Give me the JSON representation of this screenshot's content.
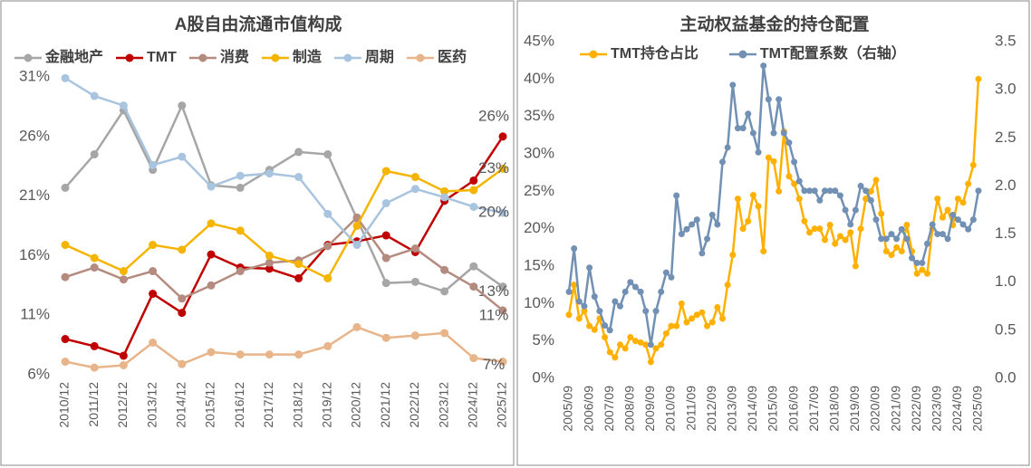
{
  "chart_data": [
    {
      "type": "line",
      "title": "A股自由流通市值构成",
      "categories": [
        "2010/12",
        "2011/12",
        "2012/12",
        "2013/12",
        "2014/12",
        "2015/12",
        "2016/12",
        "2017/12",
        "2018/12",
        "2019/12",
        "2020/12",
        "2021/12",
        "2022/12",
        "2023/12",
        "2024/12",
        "2025/12"
      ],
      "ylim": [
        6,
        31
      ],
      "yticks": [
        {
          "value": 6,
          "label": "6%"
        },
        {
          "value": 11,
          "label": "11%"
        },
        {
          "value": 16,
          "label": "16%"
        },
        {
          "value": 21,
          "label": "21%"
        },
        {
          "value": 26,
          "label": "26%"
        },
        {
          "value": 31,
          "label": "31%"
        }
      ],
      "legend": "top",
      "series": [
        {
          "name": "金融地产",
          "color": "#a6a6a6",
          "values": [
            21.7,
            24.5,
            28.2,
            23.2,
            28.6,
            21.9,
            21.7,
            23.2,
            24.7,
            24.5,
            19.1,
            13.7,
            13.8,
            13.0,
            15.1,
            13.4
          ],
          "value_labels": [
            null,
            null,
            null,
            null,
            null,
            null,
            null,
            null,
            null,
            null,
            null,
            null,
            null,
            null,
            null,
            "13%"
          ]
        },
        {
          "name": "TMT",
          "color": "#c00000",
          "values": [
            9.0,
            8.4,
            7.6,
            12.8,
            11.2,
            16.1,
            15.0,
            14.9,
            14.1,
            16.9,
            17.2,
            17.7,
            16.3,
            20.6,
            22.3,
            26.0
          ],
          "value_labels": [
            null,
            null,
            null,
            null,
            null,
            null,
            null,
            null,
            null,
            null,
            null,
            null,
            null,
            null,
            null,
            "26%"
          ]
        },
        {
          "name": "消费",
          "color": "#b58b80",
          "values": [
            14.2,
            15.0,
            14.0,
            14.7,
            12.4,
            13.5,
            14.7,
            15.4,
            15.6,
            16.8,
            19.2,
            15.8,
            16.6,
            14.8,
            13.4,
            11.4
          ],
          "value_labels": [
            null,
            null,
            null,
            null,
            null,
            null,
            null,
            null,
            null,
            null,
            null,
            null,
            null,
            null,
            null,
            "11%"
          ]
        },
        {
          "name": "制造",
          "color": "#f5b400",
          "values": [
            16.9,
            15.8,
            14.7,
            16.9,
            16.5,
            18.7,
            18.1,
            16.0,
            15.3,
            14.1,
            18.5,
            23.1,
            22.6,
            21.4,
            21.5,
            23.3
          ],
          "value_labels": [
            null,
            null,
            null,
            null,
            null,
            null,
            null,
            null,
            null,
            null,
            null,
            null,
            null,
            null,
            null,
            "23%"
          ]
        },
        {
          "name": "周期",
          "color": "#a9c4de",
          "values": [
            30.9,
            29.4,
            28.6,
            23.6,
            24.3,
            21.8,
            22.7,
            22.9,
            22.6,
            19.5,
            16.9,
            20.4,
            21.6,
            20.9,
            20.1,
            19.6
          ],
          "value_labels": [
            null,
            null,
            null,
            null,
            null,
            null,
            null,
            null,
            null,
            null,
            null,
            null,
            null,
            null,
            null,
            "20%"
          ]
        },
        {
          "name": "医药",
          "color": "#e8b48a",
          "values": [
            7.1,
            6.6,
            6.8,
            8.7,
            6.9,
            7.9,
            7.7,
            7.7,
            7.7,
            8.4,
            10.0,
            9.1,
            9.3,
            9.5,
            7.4,
            7.1
          ],
          "value_labels": [
            null,
            null,
            null,
            null,
            null,
            null,
            null,
            null,
            null,
            null,
            null,
            null,
            null,
            null,
            null,
            "7%"
          ]
        }
      ]
    },
    {
      "type": "line",
      "title": "主动权益基金的持仓配置",
      "categories": [
        "2005/09",
        null,
        null,
        null,
        "2006/09",
        null,
        null,
        null,
        "2007/09",
        null,
        null,
        null,
        "2008/09",
        null,
        null,
        null,
        "2009/09",
        null,
        null,
        null,
        "2010/09",
        null,
        null,
        null,
        "2011/09",
        null,
        null,
        null,
        "2012/09",
        null,
        null,
        null,
        "2013/09",
        null,
        null,
        null,
        "2014/09",
        null,
        null,
        null,
        "2015/09",
        null,
        null,
        null,
        "2016/09",
        null,
        null,
        null,
        "2017/09",
        null,
        null,
        null,
        "2018/09",
        null,
        null,
        null,
        "2019/09",
        null,
        null,
        null,
        "2020/09",
        null,
        null,
        null,
        "2021/09",
        null,
        null,
        null,
        "2022/09",
        null,
        null,
        null,
        "2023/09",
        null,
        null,
        null,
        "2024/09",
        null,
        null,
        null,
        "2025/09"
      ],
      "ylim": [
        0,
        45
      ],
      "yticks": [
        {
          "value": 0,
          "label": "0%"
        },
        {
          "value": 5,
          "label": "5%"
        },
        {
          "value": 10,
          "label": "10%"
        },
        {
          "value": 15,
          "label": "15%"
        },
        {
          "value": 20,
          "label": "20%"
        },
        {
          "value": 25,
          "label": "25%"
        },
        {
          "value": 30,
          "label": "30%"
        },
        {
          "value": 35,
          "label": "35%"
        },
        {
          "value": 40,
          "label": "40%"
        },
        {
          "value": 45,
          "label": "45%"
        }
      ],
      "y2lim": [
        0,
        3.5
      ],
      "y2ticks": [
        {
          "value": 0,
          "label": "0.0"
        },
        {
          "value": 0.5,
          "label": "0.5"
        },
        {
          "value": 1,
          "label": "1.0"
        },
        {
          "value": 1.5,
          "label": "1.5"
        },
        {
          "value": 2,
          "label": "2.0"
        },
        {
          "value": 2.5,
          "label": "2.5"
        },
        {
          "value": 3,
          "label": "3.0"
        },
        {
          "value": 3.5,
          "label": "3.5"
        }
      ],
      "legend": "top",
      "series": [
        {
          "name": "TMT持仓占比",
          "color": "#ffb000",
          "values": [
            8.5,
            12.5,
            8,
            9,
            7,
            6.5,
            8,
            5.5,
            3.5,
            2.8,
            4.5,
            4,
            5.5,
            5,
            4.8,
            4.5,
            2.2,
            4,
            4.5,
            6,
            7,
            7,
            10,
            7.5,
            8,
            8.5,
            8.8,
            7,
            7.5,
            9.5,
            8,
            12.5,
            16.5,
            24,
            20,
            21,
            24.5,
            23,
            17,
            29.5,
            29,
            25,
            33,
            27,
            26,
            24,
            21,
            19.5,
            20,
            20,
            18.5,
            20.5,
            18,
            19,
            18.5,
            19.5,
            15,
            20,
            24,
            25,
            26.5,
            22,
            17,
            16.5,
            17.5,
            17,
            20.5,
            17,
            14,
            14.5,
            14,
            20,
            24,
            21.5,
            22.5,
            20.5,
            24,
            23.5,
            26,
            28.5,
            40
          ]
        },
        {
          "name": "TMT配置系数（右轴）",
          "color": "#7190b4",
          "axis": "y2",
          "values": [
            0.9,
            1.35,
            0.8,
            0.75,
            1.15,
            0.85,
            0.7,
            0.55,
            0.5,
            0.8,
            0.75,
            0.9,
            1.0,
            0.95,
            0.9,
            0.7,
            0.35,
            0.7,
            0.9,
            1.1,
            1.05,
            1.9,
            1.5,
            1.55,
            1.6,
            1.65,
            1.3,
            1.45,
            1.7,
            1.6,
            2.25,
            2.4,
            3.05,
            2.6,
            2.6,
            2.75,
            2.55,
            2.35,
            3.25,
            2.9,
            2.55,
            2.9,
            2.55,
            2.45,
            2.25,
            2.05,
            1.95,
            1.95,
            1.95,
            1.85,
            1.95,
            1.95,
            1.95,
            1.9,
            1.75,
            1.6,
            1.75,
            2.0,
            1.95,
            1.85,
            1.65,
            1.45,
            1.45,
            1.5,
            1.45,
            1.55,
            1.45,
            1.25,
            1.2,
            1.2,
            1.4,
            1.6,
            1.5,
            1.5,
            1.45,
            1.7,
            1.65,
            1.6,
            1.55,
            1.65,
            1.95
          ]
        }
      ]
    }
  ]
}
